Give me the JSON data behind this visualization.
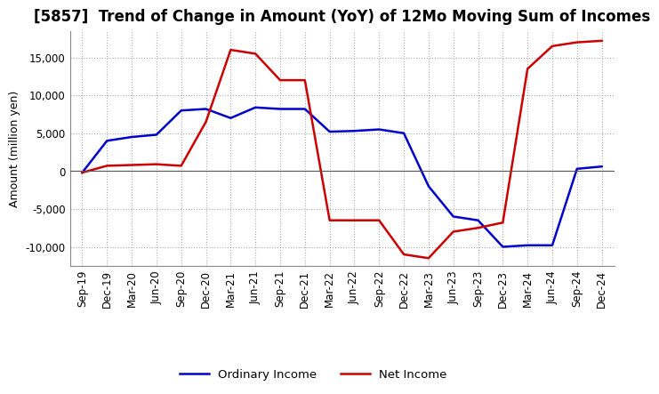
{
  "title": "[5857]  Trend of Change in Amount (YoY) of 12Mo Moving Sum of Incomes",
  "ylabel": "Amount (million yen)",
  "xlim_labels": [
    "Sep-19",
    "Dec-19",
    "Mar-20",
    "Jun-20",
    "Sep-20",
    "Dec-20",
    "Mar-21",
    "Jun-21",
    "Sep-21",
    "Dec-21",
    "Mar-22",
    "Jun-22",
    "Sep-22",
    "Dec-22",
    "Mar-23",
    "Jun-23",
    "Sep-23",
    "Dec-23",
    "Mar-24",
    "Jun-24",
    "Sep-24",
    "Dec-24"
  ],
  "ordinary_income": [
    -200,
    4000,
    4500,
    4800,
    8000,
    8200,
    7000,
    8400,
    8200,
    8200,
    5200,
    5300,
    5500,
    5000,
    -2000,
    -6000,
    -6500,
    -10000,
    -9800,
    -9800,
    300,
    600
  ],
  "net_income": [
    -200,
    700,
    800,
    900,
    700,
    6500,
    16000,
    15500,
    12000,
    12000,
    -6500,
    -6500,
    -6500,
    -11000,
    -11500,
    -8000,
    -7500,
    -6800,
    13500,
    16500,
    17000,
    17200
  ],
  "ordinary_color": "#0000cc",
  "net_color": "#cc0000",
  "ylim": [
    -12500,
    18500
  ],
  "yticks": [
    -10000,
    -5000,
    0,
    5000,
    10000,
    15000
  ],
  "background_color": "#ffffff",
  "grid_color": "#aaaaaa",
  "title_fontsize": 12,
  "legend_labels": [
    "Ordinary Income",
    "Net Income"
  ]
}
